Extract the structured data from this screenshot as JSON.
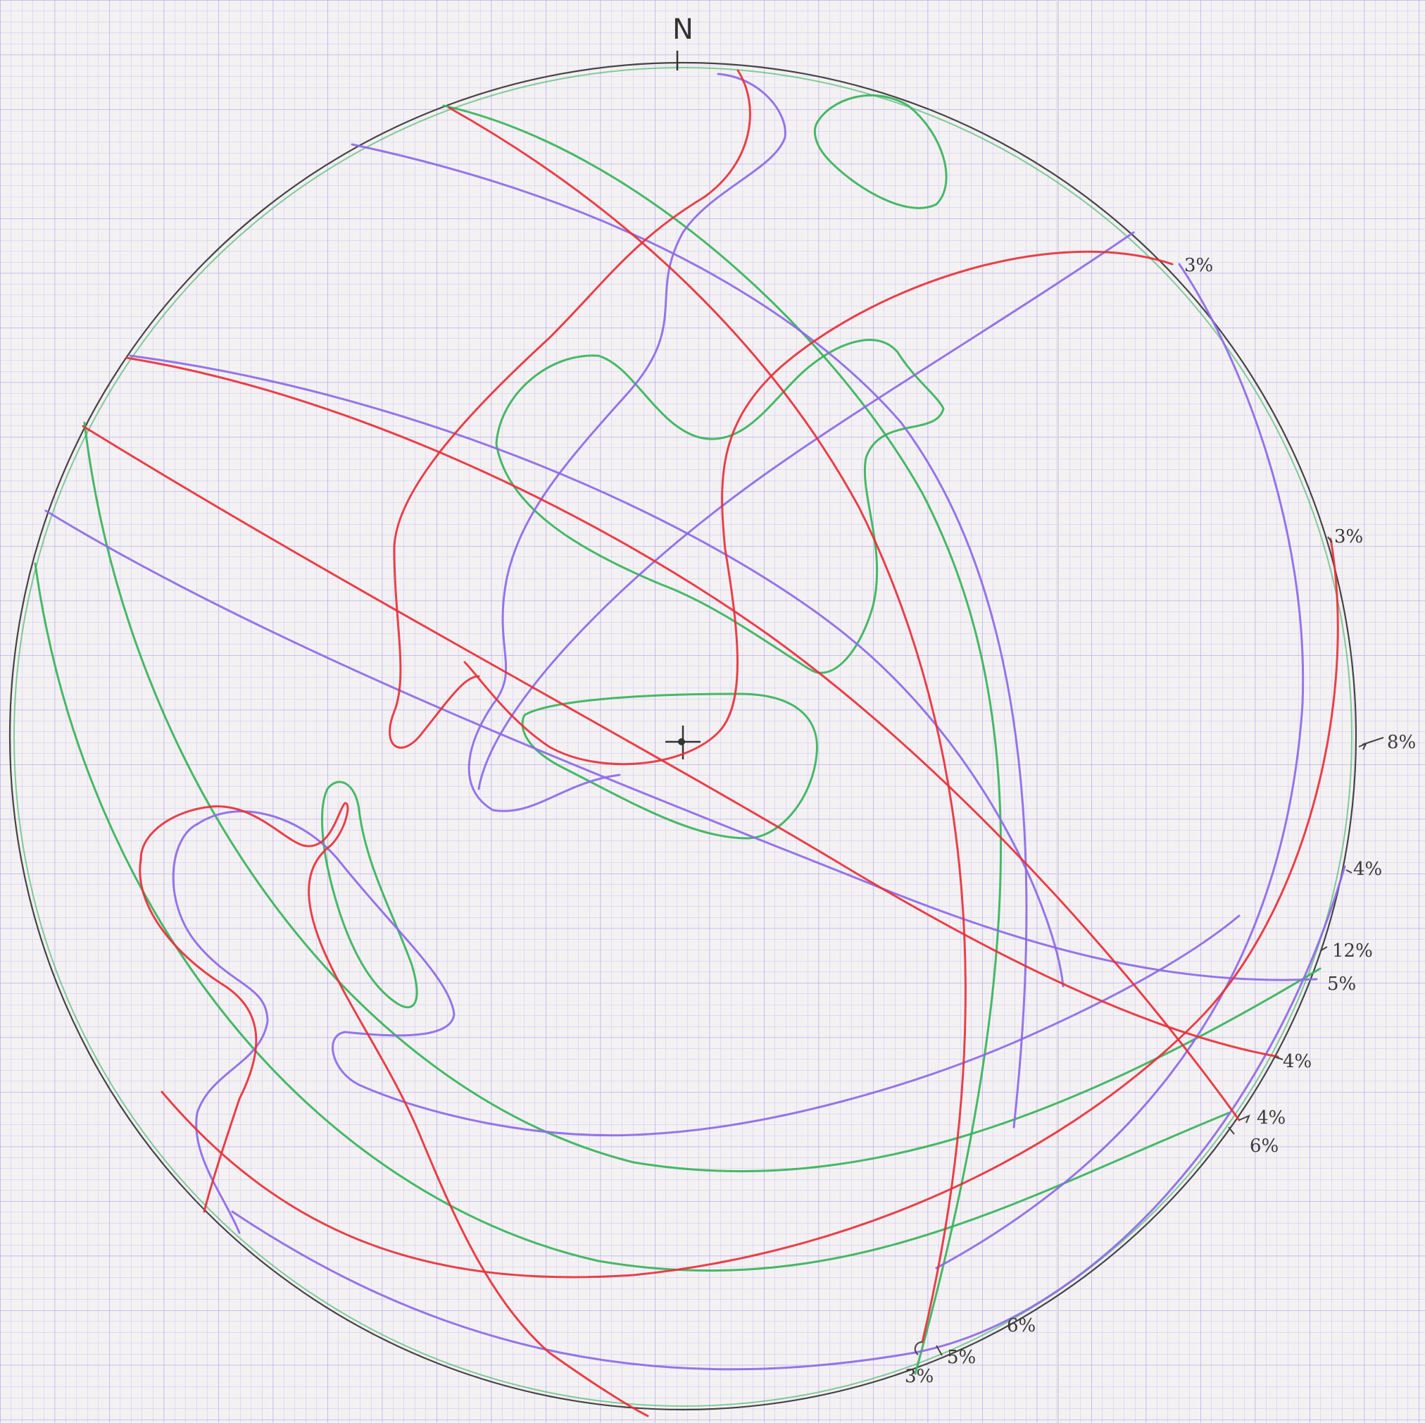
{
  "diagram": {
    "north_label": "N",
    "colors": {
      "paper": "#f4f1f3",
      "grid_minor": "#c9c6ef",
      "grid_major": "#b5b1ea",
      "red": "#e8303a",
      "green": "#36b35a",
      "purple": "#8c6ae6",
      "pencil": "#444444"
    },
    "rim_labels": [
      {
        "id": "rim-label-3pct-ne",
        "text": "3%"
      },
      {
        "id": "rim-label-3pct-e",
        "text": "3%"
      },
      {
        "id": "rim-label-8pct",
        "text": "8%"
      },
      {
        "id": "rim-label-4pct-e",
        "text": "4%"
      },
      {
        "id": "rim-label-12pct",
        "text": "12%"
      },
      {
        "id": "rim-label-5pct-e",
        "text": "5%"
      },
      {
        "id": "rim-label-4pct-se1",
        "text": "4%"
      },
      {
        "id": "rim-label-4pct-se2",
        "text": "4%"
      },
      {
        "id": "rim-label-6pct-se",
        "text": "6%"
      },
      {
        "id": "rim-label-6pct-s",
        "text": "6%"
      },
      {
        "id": "rim-label-5pct-s",
        "text": "5%"
      },
      {
        "id": "rim-label-3pct-s",
        "text": "3%"
      }
    ]
  }
}
